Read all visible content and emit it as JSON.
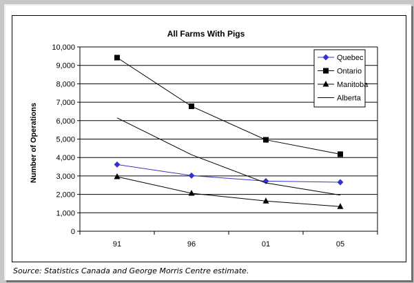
{
  "source_note": "Source: Statistics Canada and George Morris Centre estimate.",
  "chart_data": {
    "type": "line",
    "title": "All Farms With Pigs",
    "ylabel": "Number of Operations",
    "xlabel": "",
    "categories": [
      "91",
      "96",
      "01",
      "05"
    ],
    "ylim": [
      0,
      10000
    ],
    "yticks": [
      "0",
      "1,000",
      "2,000",
      "3,000",
      "4,000",
      "5,000",
      "6,000",
      "7,000",
      "8,000",
      "9,000",
      "10,000"
    ],
    "grid": "horizontal",
    "legend_position": "top-right",
    "series": [
      {
        "name": "Quebec",
        "values": [
          3620,
          3020,
          2720,
          2660
        ],
        "color": "#3333cc",
        "marker": "diamond"
      },
      {
        "name": "Ontario",
        "values": [
          9420,
          6780,
          4960,
          4180
        ],
        "color": "#000000",
        "marker": "square"
      },
      {
        "name": "Manitoba",
        "values": [
          2960,
          2060,
          1640,
          1340
        ],
        "color": "#000000",
        "marker": "triangle"
      },
      {
        "name": "Alberta",
        "values": [
          6150,
          4150,
          2620,
          1960
        ],
        "color": "#000000",
        "marker": "none"
      }
    ]
  }
}
